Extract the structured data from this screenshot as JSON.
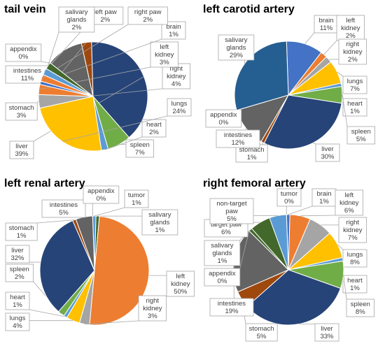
{
  "colors": {
    "intestines": "#636363",
    "stomach": "#9e480e",
    "liver": "#264478",
    "spleen": "#70ad47",
    "heart": "#5b9bd5",
    "lungs": "#ffc000",
    "right_kidney": "#a5a5a5",
    "left_kidney": "#ed7d31",
    "brain": "#4472c4",
    "right_paw": "#ed7d31",
    "left_paw": "#5b9bd5",
    "salivary_glands": "#43682b",
    "salivary_glands_carotid": "#255e91",
    "appendix": "#bfbfbf",
    "tumor": "#5b9bd5",
    "target_paw": "#43682b",
    "non_target_paw": "#5b9bd5"
  },
  "chart_data": [
    {
      "type": "pie",
      "title": "tail vein",
      "slices": [
        {
          "key": "intestines",
          "label": "intestines",
          "value_label": "11%",
          "value": 11
        },
        {
          "key": "stomach",
          "label": "stomach",
          "value_label": "3%",
          "value": 3
        },
        {
          "key": "liver",
          "label": "liver",
          "value_label": "39%",
          "value": 39
        },
        {
          "key": "spleen",
          "label": "spleen",
          "value_label": "7%",
          "value": 7
        },
        {
          "key": "heart",
          "label": "heart",
          "value_label": "2%",
          "value": 2
        },
        {
          "key": "lungs",
          "label": "lungs",
          "value_label": "24%",
          "value": 24
        },
        {
          "key": "right_kidney",
          "label": "right kidney",
          "value_label": "4%",
          "value": 4
        },
        {
          "key": "left_kidney",
          "label": "left kidney",
          "value_label": "3%",
          "value": 3
        },
        {
          "key": "brain",
          "label": "brain",
          "value_label": "1%",
          "value": 1
        },
        {
          "key": "right_paw",
          "label": "right paw",
          "value_label": "2%",
          "value": 2
        },
        {
          "key": "left_paw",
          "label": "left paw",
          "value_label": "2%",
          "value": 2
        },
        {
          "key": "salivary_glands",
          "label": "salivary glands",
          "value_label": "2%",
          "value": 2
        },
        {
          "key": "appendix",
          "label": "appendix",
          "value_label": "0%",
          "value": 0
        }
      ]
    },
    {
      "type": "pie",
      "title": "left carotid artery",
      "slices": [
        {
          "key": "brain",
          "label": "brain",
          "value_label": "11%",
          "value": 11
        },
        {
          "key": "left_kidney",
          "label": "left kidney",
          "value_label": "2%",
          "value": 2
        },
        {
          "key": "right_kidney",
          "label": "right kidney",
          "value_label": "2%",
          "value": 2
        },
        {
          "key": "lungs",
          "label": "lungs",
          "value_label": "7%",
          "value": 7
        },
        {
          "key": "heart",
          "label": "heart",
          "value_label": "1%",
          "value": 1
        },
        {
          "key": "spleen",
          "label": "spleen",
          "value_label": "5%",
          "value": 5
        },
        {
          "key": "liver",
          "label": "liver",
          "value_label": "30%",
          "value": 30
        },
        {
          "key": "stomach",
          "label": "stomach",
          "value_label": "1%",
          "value": 1
        },
        {
          "key": "intestines",
          "label": "intestines",
          "value_label": "12%",
          "value": 12
        },
        {
          "key": "appendix",
          "label": "appendix",
          "value_label": "0%",
          "value": 0
        },
        {
          "key": "salivary_glands_carotid",
          "label": "salivary glands",
          "value_label": "29%",
          "value": 29
        }
      ]
    },
    {
      "type": "pie",
      "title": "left renal artery",
      "slices": [
        {
          "key": "tumor",
          "label": "tumor",
          "value_label": "1%",
          "value": 1
        },
        {
          "key": "salivary_glands",
          "label": "salivary glands",
          "value_label": "1%",
          "value": 1
        },
        {
          "key": "left_kidney",
          "label": "left kidney",
          "value_label": "50%",
          "value": 50
        },
        {
          "key": "right_kidney",
          "label": "right kidney",
          "value_label": "3%",
          "value": 3
        },
        {
          "key": "lungs",
          "label": "lungs",
          "value_label": "4%",
          "value": 4
        },
        {
          "key": "heart",
          "label": "heart",
          "value_label": "1%",
          "value": 1
        },
        {
          "key": "spleen",
          "label": "spleen",
          "value_label": "2%",
          "value": 2
        },
        {
          "key": "liver",
          "label": "liver",
          "value_label": "32%",
          "value": 32
        },
        {
          "key": "stomach",
          "label": "stomach",
          "value_label": "1%",
          "value": 1
        },
        {
          "key": "intestines",
          "label": "intestines",
          "value_label": "5%",
          "value": 5
        },
        {
          "key": "appendix",
          "label": "appendix",
          "value_label": "0%",
          "value": 0
        }
      ]
    },
    {
      "type": "pie",
      "title": "right femoral artery",
      "slices": [
        {
          "key": "brain",
          "label": "brain",
          "value_label": "1%",
          "value": 1
        },
        {
          "key": "left_kidney",
          "label": "left kidney",
          "value_label": "6%",
          "value": 6
        },
        {
          "key": "right_kidney",
          "label": "right kidney",
          "value_label": "7%",
          "value": 7
        },
        {
          "key": "lungs",
          "label": "lungs",
          "value_label": "8%",
          "value": 8
        },
        {
          "key": "heart",
          "label": "heart",
          "value_label": "1%",
          "value": 1
        },
        {
          "key": "spleen",
          "label": "spleen",
          "value_label": "8%",
          "value": 8
        },
        {
          "key": "liver",
          "label": "liver",
          "value_label": "33%",
          "value": 33
        },
        {
          "key": "stomach",
          "label": "stomach",
          "value_label": "5%",
          "value": 5
        },
        {
          "key": "intestines",
          "label": "intestines",
          "value_label": "19%",
          "value": 19
        },
        {
          "key": "appendix",
          "label": "appendix",
          "value_label": "0%",
          "value": 0
        },
        {
          "key": "salivary_glands",
          "label": "salivary glands",
          "value_label": "1%",
          "value": 1
        },
        {
          "key": "target_paw",
          "label": "target paw",
          "value_label": "6%",
          "value": 6
        },
        {
          "key": "non_target_paw",
          "label": "non-target paw",
          "value_label": "5%",
          "value": 5
        },
        {
          "key": "tumor",
          "label": "tumor",
          "value_label": "0%",
          "value": 0
        }
      ]
    }
  ]
}
